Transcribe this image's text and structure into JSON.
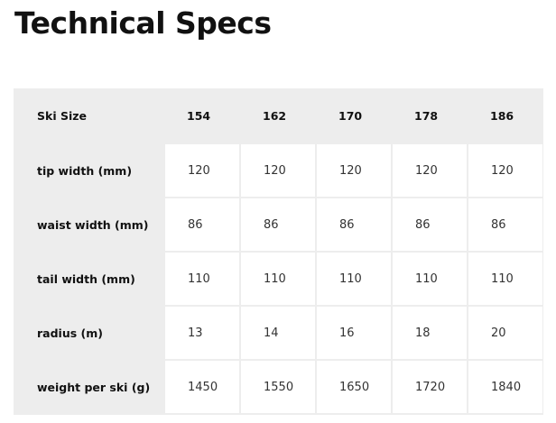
{
  "title": "Technical Specs",
  "table": {
    "header": [
      "Ski Size",
      "154",
      "162",
      "170",
      "178",
      "186"
    ],
    "rows": [
      {
        "label": "tip width (mm)",
        "values": [
          "120",
          "120",
          "120",
          "120",
          "120"
        ]
      },
      {
        "label": "waist width (mm)",
        "values": [
          "86",
          "86",
          "86",
          "86",
          "86"
        ]
      },
      {
        "label": "tail width (mm)",
        "values": [
          "110",
          "110",
          "110",
          "110",
          "110"
        ]
      },
      {
        "label": "radius (m)",
        "values": [
          "13",
          "14",
          "16",
          "18",
          "20"
        ]
      },
      {
        "label": "weight per ski (g)",
        "values": [
          "1450",
          "1550",
          "1650",
          "1720",
          "1840"
        ]
      }
    ]
  }
}
